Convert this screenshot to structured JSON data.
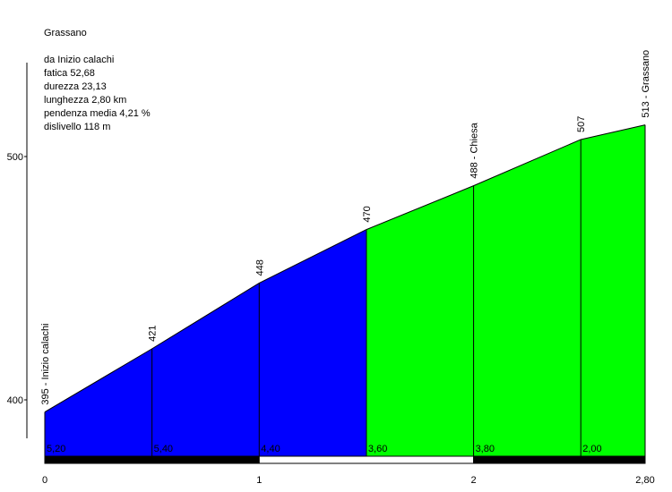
{
  "header": {
    "title": "Grassano",
    "lines": [
      "da Inizio calachi",
      "fatica 52,68",
      "durezza 23,13",
      "lunghezza 2,80 km",
      "pendenza media 4,21 %",
      "dislivello 118 m"
    ]
  },
  "colors": {
    "blue_segment": "#0000ff",
    "green_segment": "#00ff00",
    "stroke": "#000000"
  },
  "chart_data": {
    "type": "area",
    "x_unit": "km",
    "y_unit": "m",
    "xlim": [
      0,
      2.8
    ],
    "ylim": [
      387,
      530
    ],
    "x_ticks": [
      0,
      1,
      2,
      2.8
    ],
    "x_tick_labels": [
      "0",
      "1",
      "2",
      "2,80"
    ],
    "y_ticks": [
      400,
      500
    ],
    "y_tick_labels": [
      "400",
      "500"
    ],
    "points": [
      {
        "x": 0,
        "y": 395,
        "label": "395 - Inizio calachi"
      },
      {
        "x": 0.5,
        "y": 421,
        "label": "421"
      },
      {
        "x": 1.0,
        "y": 448,
        "label": "448"
      },
      {
        "x": 1.5,
        "y": 470,
        "label": "470"
      },
      {
        "x": 2.0,
        "y": 488,
        "label": "488 - Chiesa"
      },
      {
        "x": 2.5,
        "y": 507,
        "label": "507"
      },
      {
        "x": 2.8,
        "y": 513,
        "label": "513 - Grassano"
      }
    ],
    "segments": [
      {
        "from": 0,
        "to": 0.5,
        "gradient": "5,20",
        "color": "#0000ff"
      },
      {
        "from": 0.5,
        "to": 1.0,
        "gradient": "5,40",
        "color": "#0000ff"
      },
      {
        "from": 1.0,
        "to": 1.5,
        "gradient": "4,40",
        "color": "#0000ff"
      },
      {
        "from": 1.5,
        "to": 2.0,
        "gradient": "3,60",
        "color": "#00ff00"
      },
      {
        "from": 2.0,
        "to": 2.5,
        "gradient": "3,80",
        "color": "#00ff00"
      },
      {
        "from": 2.5,
        "to": 2.8,
        "gradient": "2,00",
        "color": "#00ff00"
      }
    ],
    "km_bar": [
      {
        "from": 0,
        "to": 1,
        "color": "#000000"
      },
      {
        "from": 1,
        "to": 2,
        "color": "#ffffff"
      },
      {
        "from": 2,
        "to": 2.8,
        "color": "#000000"
      }
    ]
  }
}
